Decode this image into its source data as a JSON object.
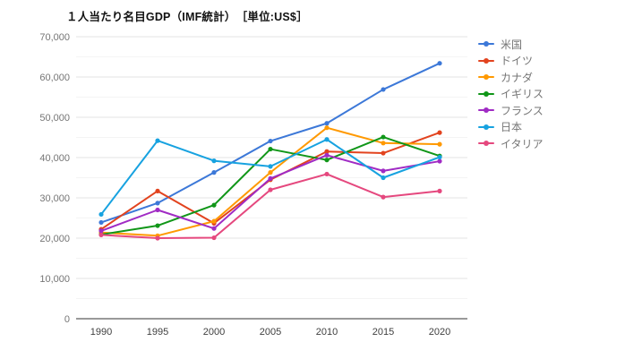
{
  "chart": {
    "full_title": "１人当たり名目GDP（IMF統計）　［単位:US$］"
  },
  "chart_data": {
    "type": "line",
    "title": "１人当たり名目GDP（IMF統計）",
    "unit_label": "［単位:US$］",
    "categories": [
      "1990",
      "1995",
      "2000",
      "2005",
      "2010",
      "2015",
      "2020"
    ],
    "series": [
      {
        "name": "米国",
        "color": "#3c78d8",
        "values": [
          23900,
          28700,
          36300,
          44100,
          48500,
          56900,
          63400
        ]
      },
      {
        "name": "ドイツ",
        "color": "#e2431e",
        "values": [
          22200,
          31700,
          23700,
          34500,
          41500,
          41100,
          46200
        ]
      },
      {
        "name": "カナダ",
        "color": "#ff9900",
        "values": [
          21400,
          20600,
          24200,
          36300,
          47400,
          43600,
          43300
        ]
      },
      {
        "name": "イギリス",
        "color": "#109618",
        "values": [
          20900,
          23100,
          28200,
          42100,
          39400,
          45100,
          40400
        ]
      },
      {
        "name": "フランス",
        "color": "#a02bc4",
        "values": [
          21800,
          27000,
          22400,
          34800,
          40600,
          36700,
          39100
        ]
      },
      {
        "name": "日本",
        "color": "#17a2e0",
        "values": [
          25900,
          44200,
          39200,
          37800,
          44500,
          35000,
          40100
        ]
      },
      {
        "name": "イタリア",
        "color": "#e5487e",
        "values": [
          20800,
          20000,
          20100,
          32000,
          35900,
          30200,
          31700
        ]
      }
    ],
    "xlabel": "",
    "ylabel": "",
    "ylim": [
      0,
      70000
    ],
    "ytick_step": 10000,
    "ytick_minor_step": 5000,
    "ytick_labels": [
      "0",
      "10,000",
      "20,000",
      "30,000",
      "40,000",
      "50,000",
      "60,000",
      "70,000"
    ],
    "grid": true,
    "legend_position": "right",
    "style": {
      "major_grid_color": "#e3e3e3",
      "minor_grid_color": "#f4f4f4",
      "axis_line_color": "#333333",
      "ytick_label_color": "#757575",
      "xtick_label_color": "#404040"
    }
  }
}
